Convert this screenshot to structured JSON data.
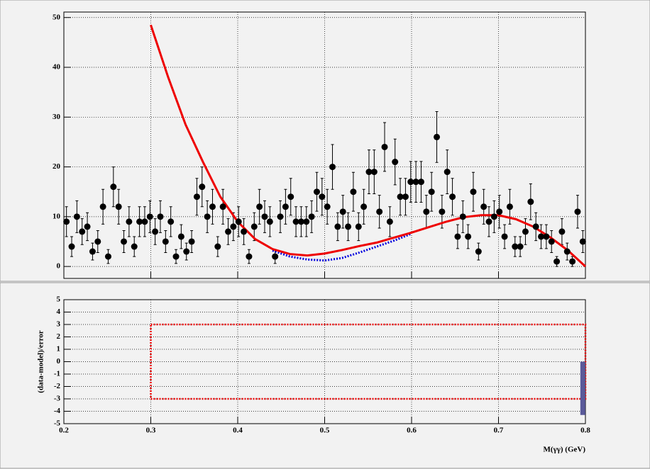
{
  "chart_data": [
    {
      "type": "errorbar",
      "xlim": [
        0.2,
        0.8
      ],
      "ylim": [
        -2.4,
        51.1
      ],
      "xticks": [
        0.2,
        0.3,
        0.4,
        0.5,
        0.6,
        0.7,
        0.8
      ],
      "yticks": [
        0,
        10,
        20,
        30,
        40,
        50
      ],
      "grid": true,
      "color": "#000000",
      "x": [
        0.203,
        0.209,
        0.215,
        0.221,
        0.227,
        0.233,
        0.239,
        0.245,
        0.251,
        0.257,
        0.263,
        0.269,
        0.275,
        0.281,
        0.287,
        0.293,
        0.299,
        0.305,
        0.311,
        0.317,
        0.323,
        0.329,
        0.335,
        0.341,
        0.347,
        0.353,
        0.359,
        0.365,
        0.371,
        0.377,
        0.383,
        0.389,
        0.395,
        0.401,
        0.407,
        0.413,
        0.419,
        0.425,
        0.431,
        0.437,
        0.443,
        0.449,
        0.455,
        0.461,
        0.467,
        0.473,
        0.479,
        0.485,
        0.491,
        0.497,
        0.503,
        0.509,
        0.515,
        0.521,
        0.527,
        0.533,
        0.539,
        0.545,
        0.551,
        0.557,
        0.563,
        0.569,
        0.575,
        0.581,
        0.587,
        0.593,
        0.599,
        0.605,
        0.611,
        0.617,
        0.623,
        0.629,
        0.635,
        0.641,
        0.647,
        0.653,
        0.659,
        0.665,
        0.671,
        0.677,
        0.683,
        0.689,
        0.695,
        0.701,
        0.707,
        0.713,
        0.719,
        0.725,
        0.731,
        0.737,
        0.743,
        0.749,
        0.755,
        0.761,
        0.767,
        0.773,
        0.779,
        0.785,
        0.791,
        0.797
      ],
      "values": [
        9,
        4,
        10,
        7,
        8,
        3,
        5,
        12,
        2,
        16,
        12,
        5,
        9,
        4,
        9,
        9,
        10,
        7,
        10,
        5,
        9,
        2,
        6,
        3,
        5,
        14,
        16,
        10,
        12,
        4,
        12,
        7,
        8,
        9,
        7,
        2,
        8,
        12,
        10,
        9,
        2,
        10,
        12,
        14,
        9,
        9,
        9,
        10,
        15,
        14,
        12,
        20,
        8,
        11,
        8,
        15,
        8,
        12,
        19,
        19,
        11,
        24,
        9,
        21,
        14,
        14,
        17,
        17,
        17,
        11,
        15,
        26,
        11,
        19,
        14,
        6,
        10,
        6,
        15,
        3,
        12,
        9,
        10,
        11,
        6,
        12,
        4,
        4,
        7,
        13,
        8,
        6,
        6,
        5,
        1,
        7,
        3,
        1,
        11,
        5
      ],
      "errors": [
        3,
        2,
        3.2,
        2.6,
        2.8,
        1.7,
        2.2,
        3.5,
        1.4,
        4,
        3.5,
        2.2,
        3,
        2,
        3,
        3,
        3.2,
        2.6,
        3.2,
        2.2,
        3,
        1.4,
        2.4,
        1.7,
        2.2,
        3.7,
        4,
        3.2,
        3.5,
        2,
        3.5,
        2.6,
        2.8,
        3,
        2.6,
        1.4,
        2.8,
        3.5,
        3.2,
        3,
        1.4,
        3.2,
        3.5,
        3.7,
        3,
        3,
        3,
        3.2,
        3.9,
        3.7,
        3.5,
        4.5,
        2.8,
        3.3,
        2.8,
        3.9,
        2.8,
        3.5,
        4.4,
        4.4,
        3.3,
        4.9,
        3,
        4.6,
        3.7,
        3.7,
        4.1,
        4.1,
        4.1,
        3.3,
        3.9,
        5.1,
        3.3,
        4.4,
        3.7,
        2.4,
        3.2,
        2.4,
        3.9,
        1.7,
        3.5,
        3,
        3.2,
        3.3,
        2.4,
        3.5,
        2,
        2,
        2.6,
        3.6,
        2.8,
        2.4,
        2.4,
        2.2,
        1,
        2.6,
        1.7,
        1,
        3.3,
        2.2
      ],
      "curves": [
        {
          "color": "#0000dd",
          "style": "dotted",
          "x": [
            0.44,
            0.46,
            0.48,
            0.5,
            0.52,
            0.54,
            0.56,
            0.58,
            0.6
          ],
          "values": [
            3.2,
            2.0,
            1.4,
            1.2,
            1.7,
            2.8,
            4.0,
            5.2,
            6.6
          ]
        },
        {
          "color": "#ee0000",
          "style": "solid",
          "x": [
            0.3,
            0.32,
            0.34,
            0.36,
            0.38,
            0.4,
            0.42,
            0.44,
            0.46,
            0.48,
            0.5,
            0.52,
            0.54,
            0.56,
            0.58,
            0.6,
            0.62,
            0.64,
            0.66,
            0.68,
            0.7,
            0.72,
            0.74,
            0.76,
            0.78,
            0.8
          ],
          "values": [
            48.5,
            38,
            28.5,
            21,
            14,
            9,
            5.5,
            3.5,
            2.5,
            2.2,
            2.6,
            3.3,
            4.1,
            4.8,
            5.8,
            6.8,
            7.9,
            9,
            9.9,
            10.3,
            10.3,
            9.5,
            8,
            5.8,
            3.2,
            0
          ]
        }
      ]
    },
    {
      "type": "residual",
      "xlim": [
        0.2,
        0.8
      ],
      "ylim": [
        -5,
        5
      ],
      "xticks": [
        0.2,
        0.3,
        0.4,
        0.5,
        0.6,
        0.7,
        0.8
      ],
      "yticks": [
        -5,
        -4,
        -3,
        -2,
        -1,
        0,
        1,
        2,
        3,
        4,
        5
      ],
      "grid": true,
      "xlabel": "M(γγ) (GeV)",
      "ylabel": "(data-model)/error",
      "box": {
        "color": "#ee0000",
        "x": [
          0.3,
          0.8
        ],
        "y": [
          -3,
          3
        ]
      },
      "bars": {
        "color": "#5a5a9a",
        "x": [
          0.797
        ],
        "values": [
          -4.3
        ]
      }
    }
  ]
}
